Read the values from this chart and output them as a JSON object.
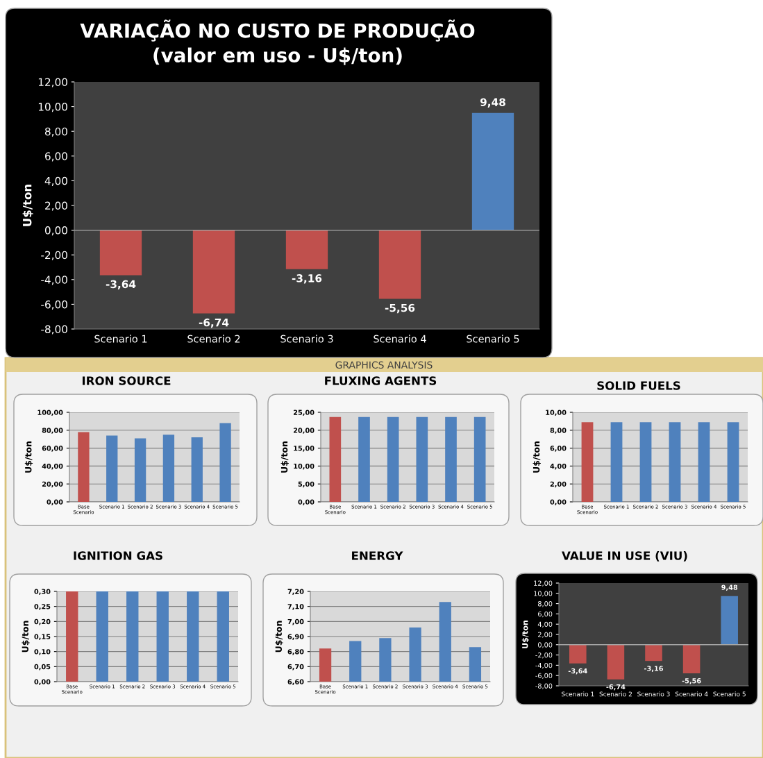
{
  "chart_data": [
    {
      "type": "bar",
      "title": "VARIAÇÃO NO CUSTO DE PRODUÇÃO\n(valor em uso - U$/ton)",
      "ylabel": "U$/ton",
      "categories": [
        "Scenario 1",
        "Scenario 2",
        "Scenario 3",
        "Scenario 4",
        "Scenario 5"
      ],
      "values": [
        -3.64,
        -6.74,
        -3.16,
        -5.56,
        9.48
      ],
      "colors": [
        "#c0504d",
        "#c0504d",
        "#c0504d",
        "#c0504d",
        "#4f81bd"
      ],
      "value_labels": [
        "-3,64",
        "-6,74",
        "-3,16",
        "-5,56",
        "9,48"
      ],
      "ylim": [
        -8,
        12
      ],
      "yticks": [
        {
          "value": -8,
          "label": "-8,00"
        },
        {
          "value": -6,
          "label": "-6,00"
        },
        {
          "value": -4,
          "label": "-4,00"
        },
        {
          "value": -2,
          "label": "-2,00"
        },
        {
          "value": 0,
          "label": "0,00"
        },
        {
          "value": 2,
          "label": "2,00"
        },
        {
          "value": 4,
          "label": "4,00"
        },
        {
          "value": 6,
          "label": "6,00"
        },
        {
          "value": 8,
          "label": "8,00"
        },
        {
          "value": 10,
          "label": "10,00"
        },
        {
          "value": 12,
          "label": "12,00"
        }
      ]
    },
    {
      "type": "other",
      "title": "GRAPHICS ANALYSIS"
    },
    {
      "type": "bar",
      "title": "IRON SOURCE",
      "ylabel": "U$/ton",
      "categories": [
        "Base Scenario",
        "Scenario 1",
        "Scenario 2",
        "Scenario 3",
        "Scenario 4",
        "Scenario 5"
      ],
      "values": [
        78,
        74,
        71,
        75,
        72,
        88
      ],
      "colors": [
        "#c0504d",
        "#4f81bd",
        "#4f81bd",
        "#4f81bd",
        "#4f81bd",
        "#4f81bd"
      ],
      "ylim": [
        0,
        100
      ],
      "yticks": [
        {
          "value": 0,
          "label": "0,00"
        },
        {
          "value": 20,
          "label": "20,00"
        },
        {
          "value": 40,
          "label": "40,00"
        },
        {
          "value": 60,
          "label": "60,00"
        },
        {
          "value": 80,
          "label": "80,00"
        },
        {
          "value": 100,
          "label": "100,00"
        }
      ],
      "grid": "y"
    },
    {
      "type": "bar",
      "title": "FLUXING AGENTS",
      "ylabel": "U$/ton",
      "categories": [
        "Base Scenario",
        "Scenario 1",
        "Scenario 2",
        "Scenario 3",
        "Scenario 4",
        "Scenario 5"
      ],
      "values": [
        23.7,
        23.7,
        23.7,
        23.7,
        23.7,
        23.7
      ],
      "colors": [
        "#c0504d",
        "#4f81bd",
        "#4f81bd",
        "#4f81bd",
        "#4f81bd",
        "#4f81bd"
      ],
      "ylim": [
        0,
        25
      ],
      "yticks": [
        {
          "value": 0,
          "label": "0,00"
        },
        {
          "value": 5,
          "label": "5,00"
        },
        {
          "value": 10,
          "label": "10,00"
        },
        {
          "value": 15,
          "label": "15,00"
        },
        {
          "value": 20,
          "label": "20,00"
        },
        {
          "value": 25,
          "label": "25,00"
        }
      ],
      "grid": "y"
    },
    {
      "type": "bar",
      "title": "SOLID FUELS",
      "ylabel": "U$/ton",
      "categories": [
        "Base Scenario",
        "Scenario 1",
        "Scenario 2",
        "Scenario 3",
        "Scenario 4",
        "Scenario 5"
      ],
      "values": [
        8.9,
        8.9,
        8.9,
        8.9,
        8.9,
        8.9
      ],
      "colors": [
        "#c0504d",
        "#4f81bd",
        "#4f81bd",
        "#4f81bd",
        "#4f81bd",
        "#4f81bd"
      ],
      "ylim": [
        0,
        10
      ],
      "yticks": [
        {
          "value": 0,
          "label": "0,00"
        },
        {
          "value": 2,
          "label": "2,00"
        },
        {
          "value": 4,
          "label": "4,00"
        },
        {
          "value": 6,
          "label": "6,00"
        },
        {
          "value": 8,
          "label": "8,00"
        },
        {
          "value": 10,
          "label": "10,00"
        }
      ],
      "grid": "y"
    },
    {
      "type": "bar",
      "title": "IGNITION GAS",
      "ylabel": "U$/ton",
      "categories": [
        "Base Scenario",
        "Scenario 1",
        "Scenario 2",
        "Scenario 3",
        "Scenario 4",
        "Scenario 5"
      ],
      "values": [
        0.3,
        0.3,
        0.3,
        0.3,
        0.3,
        0.3
      ],
      "colors": [
        "#c0504d",
        "#4f81bd",
        "#4f81bd",
        "#4f81bd",
        "#4f81bd",
        "#4f81bd"
      ],
      "ylim": [
        0,
        0.3
      ],
      "yticks": [
        {
          "value": 0,
          "label": "0,00"
        },
        {
          "value": 0.05,
          "label": "0,05"
        },
        {
          "value": 0.1,
          "label": "0,10"
        },
        {
          "value": 0.15,
          "label": "0,15"
        },
        {
          "value": 0.2,
          "label": "0,20"
        },
        {
          "value": 0.25,
          "label": "0,25"
        },
        {
          "value": 0.3,
          "label": "0,30"
        }
      ],
      "grid": "y"
    },
    {
      "type": "bar",
      "title": "ENERGY",
      "ylabel": "U$/ton",
      "categories": [
        "Base Scenario",
        "Scenario 1",
        "Scenario 2",
        "Scenario 3",
        "Scenario 4",
        "Scenario 5"
      ],
      "values": [
        6.82,
        6.87,
        6.89,
        6.96,
        7.13,
        6.83
      ],
      "colors": [
        "#c0504d",
        "#4f81bd",
        "#4f81bd",
        "#4f81bd",
        "#4f81bd",
        "#4f81bd"
      ],
      "ylim": [
        6.6,
        7.2
      ],
      "yticks": [
        {
          "value": 6.6,
          "label": "6,60"
        },
        {
          "value": 6.7,
          "label": "6,70"
        },
        {
          "value": 6.8,
          "label": "6,80"
        },
        {
          "value": 6.9,
          "label": "6,90"
        },
        {
          "value": 7.0,
          "label": "7,00"
        },
        {
          "value": 7.1,
          "label": "7,10"
        },
        {
          "value": 7.2,
          "label": "7,20"
        }
      ],
      "grid": "y"
    },
    {
      "type": "bar",
      "title": "VALUE IN USE (VIU)",
      "ylabel": "U$/ton",
      "categories": [
        "Scenario 1",
        "Scenario 2",
        "Scenario 3",
        "Scenario 4",
        "Scenario 5"
      ],
      "values": [
        -3.64,
        -6.74,
        -3.16,
        -5.56,
        9.48
      ],
      "colors": [
        "#c0504d",
        "#c0504d",
        "#c0504d",
        "#c0504d",
        "#4f81bd"
      ],
      "value_labels": [
        "-3,64",
        "-6,74",
        "-3,16",
        "-5,56",
        "9,48"
      ],
      "ylim": [
        -8,
        12
      ],
      "yticks": [
        {
          "value": -8,
          "label": "-8,00"
        },
        {
          "value": -6,
          "label": "-6,00"
        },
        {
          "value": -4,
          "label": "-4,00"
        },
        {
          "value": -2,
          "label": "-2,00"
        },
        {
          "value": 0,
          "label": "0,00"
        },
        {
          "value": 2,
          "label": "2,00"
        },
        {
          "value": 4,
          "label": "4,00"
        },
        {
          "value": 6,
          "label": "6,00"
        },
        {
          "value": 8,
          "label": "8,00"
        },
        {
          "value": 10,
          "label": "10,00"
        },
        {
          "value": 12,
          "label": "12,00"
        }
      ]
    }
  ]
}
